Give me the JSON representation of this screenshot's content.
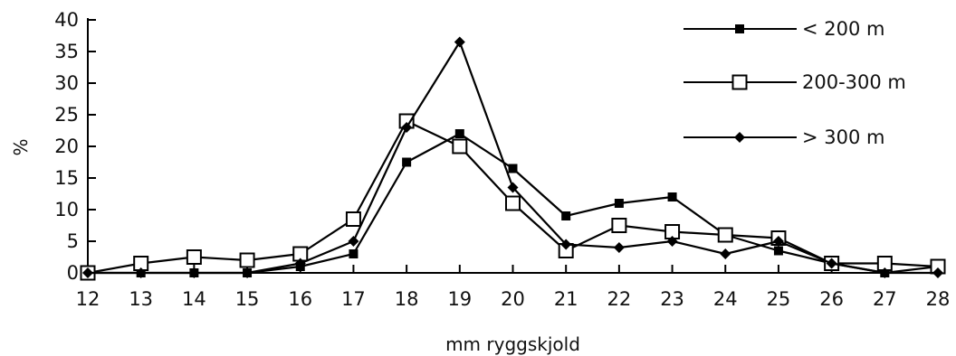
{
  "chart_data": {
    "type": "line",
    "title": "",
    "xlabel": "mm ryggskjold",
    "ylabel": "%",
    "x": [
      12,
      13,
      14,
      15,
      16,
      17,
      18,
      19,
      20,
      21,
      22,
      23,
      24,
      25,
      26,
      27,
      28
    ],
    "x_tick_labels": [
      "12",
      "13",
      "14",
      "15",
      "16",
      "17",
      "18",
      "19",
      "20",
      "21",
      "22",
      "23",
      "24",
      "25",
      "26",
      "27",
      "28"
    ],
    "y_ticks": [
      0,
      5,
      10,
      15,
      20,
      25,
      30,
      35,
      40
    ],
    "y_tick_labels": [
      "0",
      "5",
      "10",
      "15",
      "20",
      "25",
      "30",
      "35",
      "40"
    ],
    "xlim": [
      12,
      28
    ],
    "ylim": [
      0,
      40
    ],
    "grid": false,
    "legend_position": "top-right",
    "series": [
      {
        "name": "< 200 m",
        "marker": "filled-square",
        "color": "#000000",
        "values": [
          0,
          0,
          0,
          0,
          1,
          3,
          17.5,
          22,
          16.5,
          9,
          11,
          12,
          6,
          3.5,
          1.5,
          0,
          1
        ]
      },
      {
        "name": "200-300 m",
        "marker": "open-square",
        "color": "#000000",
        "values": [
          0,
          1.5,
          2.5,
          2,
          3,
          8.5,
          24,
          20,
          11,
          3.5,
          7.5,
          6.5,
          6,
          5.5,
          1.5,
          1.5,
          1
        ]
      },
      {
        "name": "> 300 m",
        "marker": "diamond",
        "color": "#000000",
        "values": [
          0,
          0,
          0,
          0,
          1.5,
          5,
          23,
          36.5,
          13.5,
          4.5,
          4,
          5,
          3,
          5,
          1.5,
          0,
          0
        ]
      }
    ]
  }
}
